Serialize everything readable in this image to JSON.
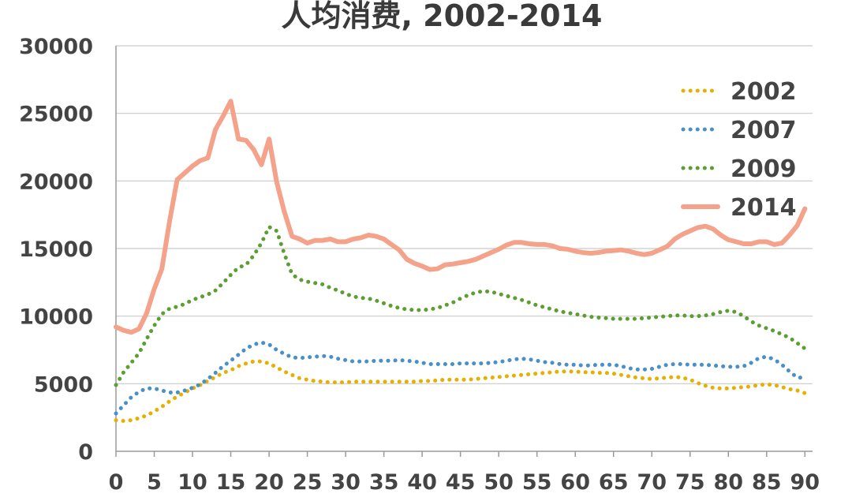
{
  "chart_data": {
    "type": "line",
    "title": "人均消费, 2002-2014",
    "xlabel": "",
    "ylabel": "",
    "xlim": [
      0,
      91
    ],
    "ylim": [
      0,
      30000
    ],
    "x_ticks": [
      "0",
      "5",
      "10",
      "15",
      "20",
      "25",
      "30",
      "35",
      "40",
      "45",
      "50",
      "55",
      "60",
      "65",
      "70",
      "75",
      "80",
      "85",
      "90"
    ],
    "y_ticks": [
      "0",
      "5000",
      "10000",
      "15000",
      "20000",
      "25000",
      "30000"
    ],
    "grid": "horizontal",
    "legend_position": "right",
    "x": [
      0,
      1,
      2,
      3,
      4,
      5,
      6,
      7,
      8,
      9,
      10,
      11,
      12,
      13,
      14,
      15,
      16,
      17,
      18,
      19,
      20,
      21,
      22,
      23,
      24,
      25,
      26,
      27,
      28,
      29,
      30,
      31,
      32,
      33,
      34,
      35,
      36,
      37,
      38,
      39,
      40,
      41,
      42,
      43,
      44,
      45,
      46,
      47,
      48,
      49,
      50,
      51,
      52,
      53,
      54,
      55,
      56,
      57,
      58,
      59,
      60,
      61,
      62,
      63,
      64,
      65,
      66,
      67,
      68,
      69,
      70,
      71,
      72,
      73,
      74,
      75,
      76,
      77,
      78,
      79,
      80,
      81,
      82,
      83,
      84,
      85,
      86,
      87,
      88,
      89,
      90
    ],
    "series": [
      {
        "name": "2002",
        "color": "#E5B100",
        "style": "dotted",
        "values": [
          2300,
          2250,
          2300,
          2450,
          2650,
          2950,
          3300,
          3700,
          4050,
          4350,
          4650,
          4900,
          5200,
          5500,
          5800,
          6000,
          6300,
          6500,
          6650,
          6650,
          6500,
          6200,
          5900,
          5650,
          5400,
          5300,
          5200,
          5150,
          5100,
          5100,
          5100,
          5150,
          5150,
          5150,
          5150,
          5150,
          5150,
          5150,
          5150,
          5150,
          5200,
          5200,
          5250,
          5300,
          5300,
          5300,
          5300,
          5350,
          5400,
          5450,
          5500,
          5550,
          5600,
          5650,
          5700,
          5750,
          5800,
          5850,
          5900,
          5900,
          5900,
          5850,
          5850,
          5800,
          5800,
          5750,
          5650,
          5550,
          5450,
          5400,
          5350,
          5400,
          5450,
          5500,
          5450,
          5300,
          5050,
          4850,
          4700,
          4650,
          4650,
          4700,
          4750,
          4800,
          4900,
          4950,
          4900,
          4750,
          4600,
          4500,
          4300
        ]
      },
      {
        "name": "2007",
        "color": "#4A90C8",
        "style": "dotted",
        "values": [
          2800,
          3400,
          4000,
          4400,
          4650,
          4650,
          4500,
          4350,
          4350,
          4500,
          4700,
          4950,
          5350,
          5800,
          6300,
          6700,
          7150,
          7600,
          7900,
          8050,
          7900,
          7500,
          7200,
          6950,
          6900,
          6950,
          7000,
          7050,
          7000,
          6850,
          6750,
          6650,
          6650,
          6650,
          6700,
          6700,
          6700,
          6750,
          6700,
          6650,
          6550,
          6450,
          6450,
          6450,
          6450,
          6500,
          6500,
          6500,
          6500,
          6550,
          6600,
          6700,
          6800,
          6850,
          6800,
          6700,
          6600,
          6550,
          6450,
          6400,
          6400,
          6350,
          6350,
          6400,
          6400,
          6400,
          6300,
          6150,
          6050,
          6050,
          6100,
          6250,
          6400,
          6450,
          6450,
          6400,
          6400,
          6400,
          6350,
          6300,
          6250,
          6250,
          6300,
          6550,
          6900,
          7000,
          6800,
          6400,
          5900,
          5450,
          5450
        ]
      },
      {
        "name": "2009",
        "color": "#5C9E31",
        "style": "dotted",
        "values": [
          4900,
          5850,
          6550,
          7250,
          8300,
          9300,
          10150,
          10550,
          10700,
          10900,
          11200,
          11400,
          11600,
          11900,
          12450,
          13050,
          13600,
          13800,
          14500,
          15400,
          16600,
          16300,
          14600,
          13100,
          12700,
          12550,
          12450,
          12350,
          12100,
          11900,
          11650,
          11450,
          11350,
          11300,
          11150,
          10950,
          10750,
          10600,
          10500,
          10450,
          10450,
          10500,
          10600,
          10800,
          11000,
          11300,
          11550,
          11750,
          11850,
          11800,
          11650,
          11500,
          11350,
          11200,
          11000,
          10800,
          10650,
          10500,
          10350,
          10250,
          10150,
          10050,
          9950,
          9900,
          9850,
          9800,
          9800,
          9800,
          9800,
          9850,
          9900,
          9950,
          10000,
          10050,
          10050,
          10000,
          10000,
          10050,
          10150,
          10300,
          10400,
          10300,
          10000,
          9600,
          9300,
          9100,
          8900,
          8650,
          8400,
          8000,
          7600
        ]
      },
      {
        "name": "2014",
        "color": "#F4A28A",
        "style": "solid",
        "values": [
          9200,
          8950,
          8800,
          9050,
          10200,
          12000,
          13500,
          17000,
          20100,
          20600,
          21100,
          21500,
          21700,
          23800,
          24800,
          25900,
          23100,
          23000,
          22300,
          21200,
          23100,
          19900,
          17700,
          15900,
          15700,
          15400,
          15600,
          15600,
          15700,
          15500,
          15500,
          15700,
          15800,
          16000,
          15900,
          15700,
          15300,
          14900,
          14200,
          13900,
          13700,
          13450,
          13500,
          13800,
          13850,
          13950,
          14050,
          14200,
          14450,
          14700,
          14950,
          15250,
          15450,
          15450,
          15350,
          15300,
          15300,
          15200,
          15000,
          14950,
          14800,
          14700,
          14650,
          14700,
          14800,
          14850,
          14900,
          14800,
          14650,
          14550,
          14650,
          14900,
          15150,
          15700,
          16050,
          16300,
          16550,
          16650,
          16450,
          16000,
          15650,
          15500,
          15350,
          15350,
          15500,
          15500,
          15300,
          15400,
          16000,
          16700,
          17950
        ]
      }
    ]
  }
}
